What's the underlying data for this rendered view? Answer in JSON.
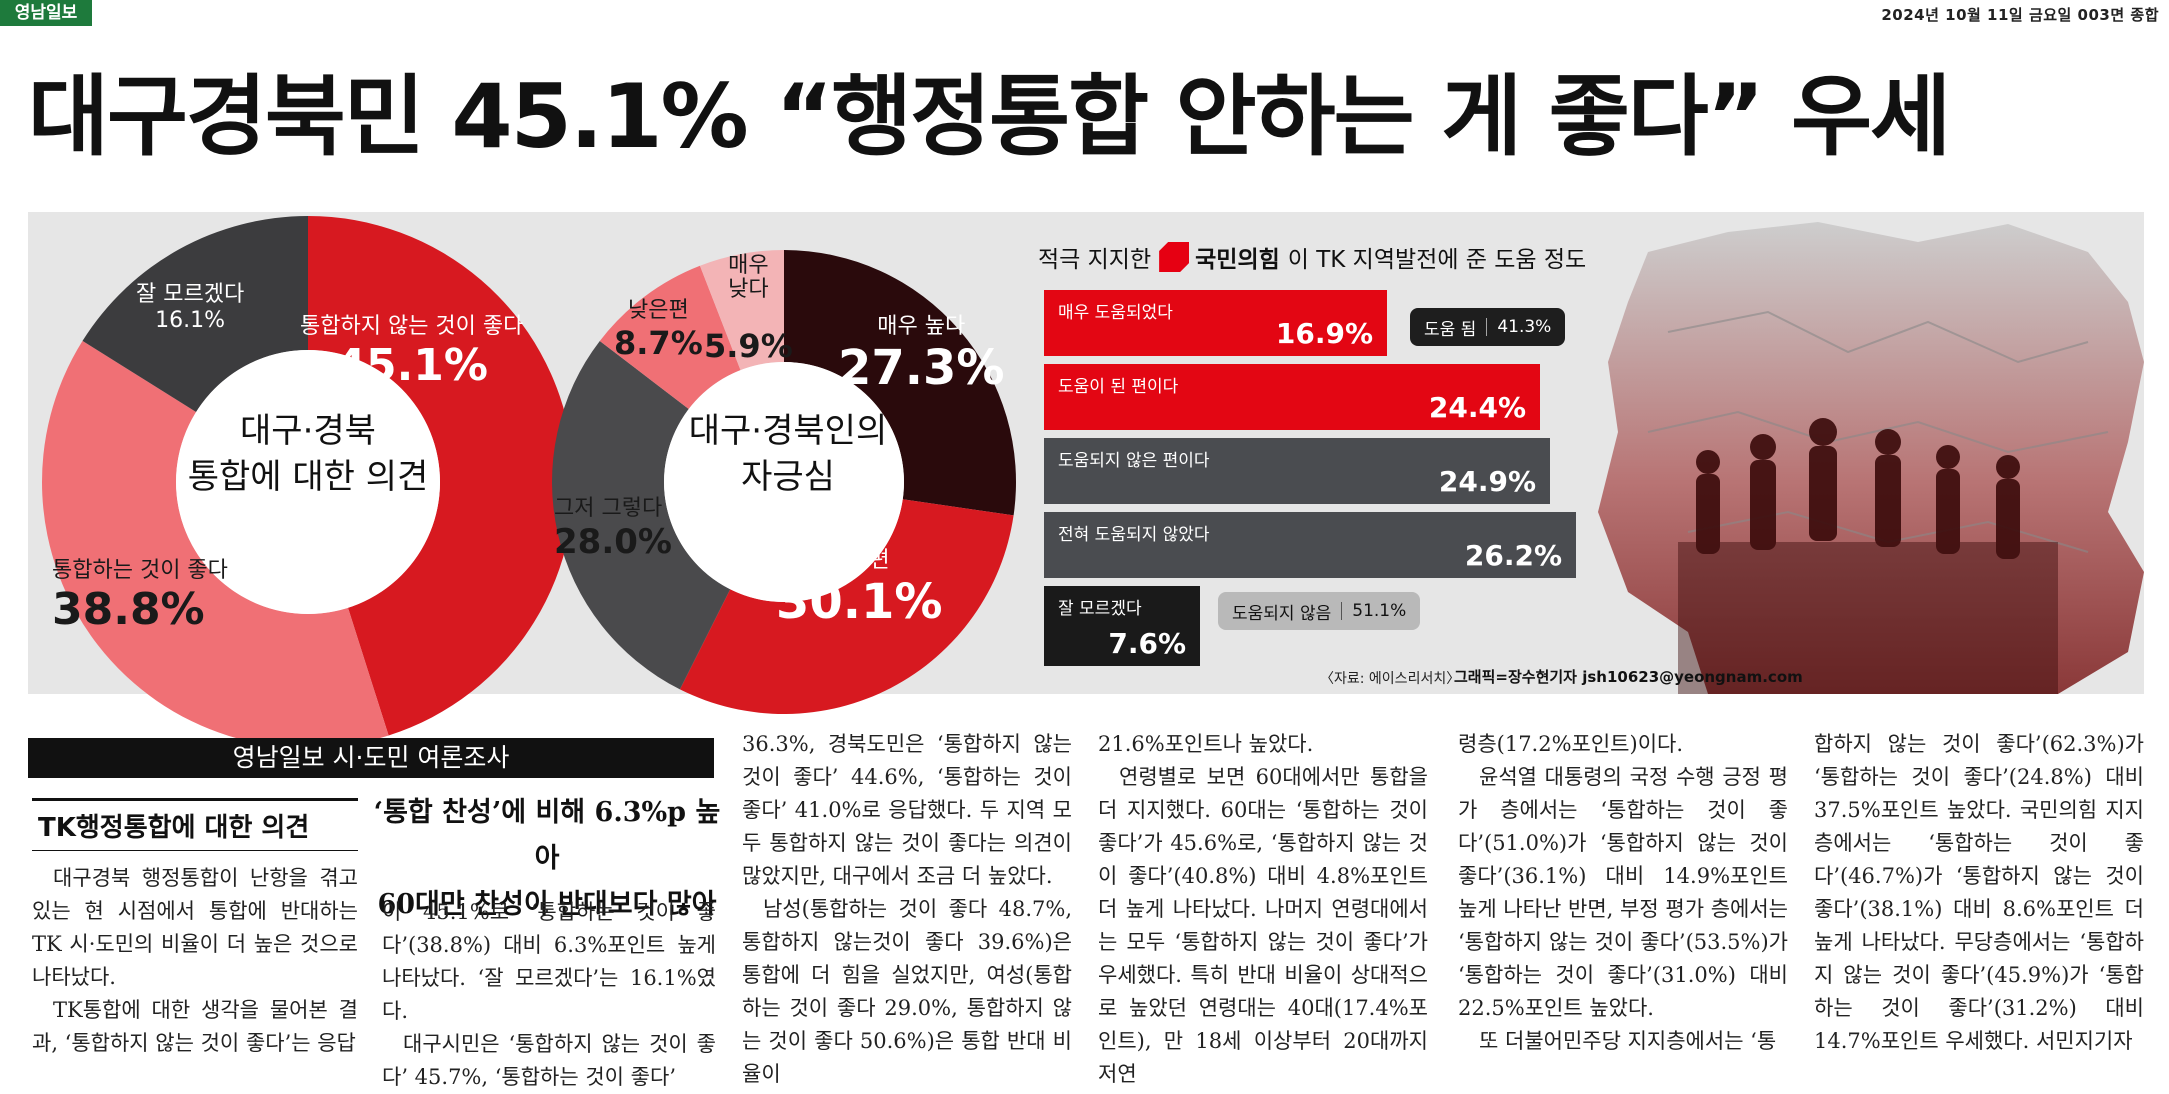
{
  "header": {
    "logo": "영남일보",
    "dateline": "2024년 10월 11일 금요일 003면 종합",
    "headline": "대구경북민 45.1% “행정통합 안하는 게 좋다” 우세"
  },
  "graphic": {
    "donut1": {
      "center_line1": "대구·경북",
      "center_line2": "통합에 대한 의견",
      "segments": [
        {
          "name": "통합하지 않는 것이 좋다",
          "value": "45.1%",
          "pct": 45.1,
          "color": "#d71920"
        },
        {
          "name": "통합하는 것이 좋다",
          "value": "38.8%",
          "pct": 38.8,
          "color": "#f07075"
        },
        {
          "name": "잘 모르겠다",
          "value": "16.1%",
          "pct": 16.1,
          "color": "#3c3c3e"
        }
      ]
    },
    "donut2": {
      "center_line1": "대구·경북인의",
      "center_line2": "자긍심",
      "segments": [
        {
          "name": "매우 높다",
          "value": "27.3%",
          "pct": 27.3,
          "color": "#2a0a0c"
        },
        {
          "name": "높은편",
          "value": "30.1%",
          "pct": 30.1,
          "color": "#d71920"
        },
        {
          "name": "그저 그렇다",
          "value": "28.0%",
          "pct": 28.0,
          "color": "#4a4a4c"
        },
        {
          "name": "낮은편",
          "value": "8.7%",
          "pct": 8.7,
          "color": "#f07075"
        },
        {
          "name": "매우\n낮다",
          "value": "5.9%",
          "pct": 5.9,
          "color": "#f3b4b6"
        }
      ]
    },
    "bars": {
      "title_pre": "적극 지지한",
      "party": "국민의힘",
      "title_post": "이 TK 지역발전에 준 도움 정도",
      "items": [
        {
          "label": "매우 도움되었다",
          "value": "16.9%"
        },
        {
          "label": "도움이 된 편이다",
          "value": "24.4%"
        },
        {
          "label": "도움되지 않은 편이다",
          "value": "24.9%"
        },
        {
          "label": "전혀 도움되지 않았다",
          "value": "26.2%"
        },
        {
          "label": "잘 모르겠다",
          "value": "7.6%"
        }
      ],
      "help_label": "도움 됨",
      "help_value": "41.3%",
      "nohelp_label": "도움되지 않음",
      "nohelp_value": "51.1%"
    },
    "source": "〈자료: 에이스리서치〉",
    "credit": "그래픽=장수현기자 jsh10623@yeongnam.com"
  },
  "article": {
    "section": "영남일보 시·도민 여론조사",
    "subhead": "TK행정통합에 대한 의견",
    "callout1": "‘통합 찬성’에 비해 6.3%p 높아",
    "callout2": "60대만 찬성이 반대보다 많아",
    "col1": [
      "대구경북 행정통합이 난항을 겪고 있는 현 시점에서 통합에 반대하는 TK 시·도민의 비율이 더 높은 것으로 나타났다.",
      "TK통합에 대한 생각을 물어본 결과, ‘통합하지 않는 것이 좋다’는 응답"
    ],
    "col2": [
      "이 45.1%로 ‘통합하는 것이 좋다’(38.8%) 대비 6.3%포인트 높게 나타났다. ‘잘 모르겠다’는 16.1%였다.",
      "대구시민은 ‘통합하지 않는 것이 좋다’ 45.7%, ‘통합하는 것이 좋다’"
    ],
    "col3": [
      "36.3%, 경북도민은 ‘통합하지 않는 것이 좋다’ 44.6%, ‘통합하는 것이 좋다’ 41.0%로 응답했다. 두 지역 모두 통합하지 않는 것이 좋다는 의견이 많았지만, 대구에서 조금 더 높았다.",
      "남성(통합하는 것이 좋다 48.7%, 통합하지 않는것이 좋다 39.6%)은 통합에 더 힘을 실었지만, 여성(통합하는 것이 좋다 29.0%, 통합하지 않는 것이 좋다 50.6%)은 통합 반대 비율이"
    ],
    "col4": [
      "21.6%포인트나 높았다.",
      "연령별로 보면 60대에서만 통합을 더 지지했다. 60대는 ‘통합하는 것이 좋다’가 45.6%로, ‘통합하지 않는 것이 좋다’(40.8%) 대비 4.8%포인트 더 높게 나타났다. 나머지 연령대에서는 모두 ‘통합하지 않는 것이 좋다’가 우세했다. 특히 반대 비율이 상대적으로 높았던 연령대는 40대(17.4%포인트), 만 18세 이상부터 20대까지 저연"
    ],
    "col5": [
      "령층(17.2%포인트)이다.",
      "윤석열 대통령의 국정 수행 긍정 평가 층에서는 ‘통합하는 것이 좋다’(51.0%)가 ‘통합하지 않는 것이 좋다’(36.1%) 대비 14.9%포인트 높게 나타난 반면, 부정 평가 층에서는 ‘통합하지 않는 것이 좋다’(53.5%)가 ‘통합하는 것이 좋다’(31.0%) 대비 22.5%포인트 높았다.",
      "또 더불어민주당 지지층에서는 ‘통"
    ],
    "col6": [
      "합하지 않는 것이 좋다’(62.3%)가 ‘통합하는 것이 좋다’(24.8%) 대비 37.5%포인트 높았다. 국민의힘 지지층에서는 ‘통합하는 것이 좋다’(46.7%)가 ‘통합하지 않는 것이 좋다’(38.1%) 대비 8.6%포인트 더 높게 나타났다. 무당층에서는 ‘통합하지 않는 것이 좋다’(45.9%)가 ‘통합하는 것이 좋다’(31.2%) 대비 14.7%포인트 우세했다. 서민지기자 "
    ]
  }
}
